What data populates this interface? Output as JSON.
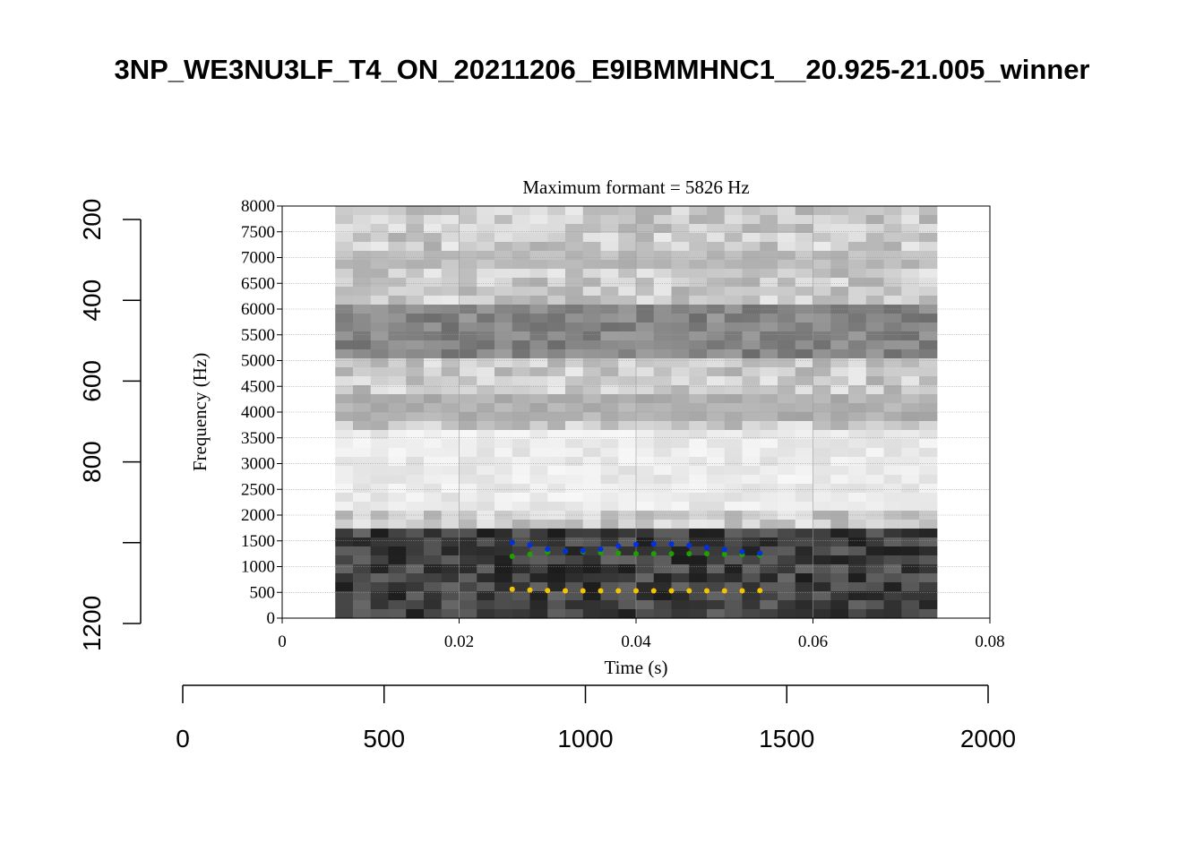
{
  "page": {
    "title": "3NP_WE3NU3LF_T4_ON_20211206_E9IBMMHNC1__20.925-21.005_winner"
  },
  "outer_axes": {
    "x_ticks": [
      "0",
      "500",
      "1000",
      "1500",
      "2000"
    ],
    "x_tick_values": [
      0,
      500,
      1000,
      1500,
      2000
    ],
    "y_ticks": [
      "200",
      "400",
      "600",
      "800",
      "",
      "1200"
    ],
    "y_tick_values": [
      200,
      400,
      600,
      800,
      1000,
      1200
    ]
  },
  "chart_data": {
    "type": "scatter",
    "title": "Maximum formant  =  5826 Hz",
    "xlabel": "Time (s)",
    "ylabel": "Frequency (Hz)",
    "xlim": [
      0,
      0.08
    ],
    "ylim": [
      0,
      8000
    ],
    "x_ticks": [
      "0",
      "0.02",
      "0.04",
      "0.06",
      "0.08"
    ],
    "x_tick_values": [
      0,
      0.02,
      0.04,
      0.06,
      0.08
    ],
    "y_ticks": [
      "0",
      "500",
      "1000",
      "1500",
      "2000",
      "2500",
      "3000",
      "3500",
      "4000",
      "4500",
      "5000",
      "5500",
      "6000",
      "6500",
      "7000",
      "7500",
      "8000"
    ],
    "y_tick_values": [
      0,
      500,
      1000,
      1500,
      2000,
      2500,
      3000,
      3500,
      4000,
      4500,
      5000,
      5500,
      6000,
      6500,
      7000,
      7500,
      8000
    ],
    "grid": true,
    "spectrogram": {
      "time_range": [
        0.006,
        0.074
      ],
      "dark_bands_hz": [
        {
          "from": 0,
          "to": 1800,
          "darkness": 0.85
        },
        {
          "from": 3800,
          "to": 4300,
          "darkness": 0.35
        },
        {
          "from": 5000,
          "to": 6000,
          "darkness": 0.55
        },
        {
          "from": 6800,
          "to": 7200,
          "darkness": 0.3
        }
      ]
    },
    "series": [
      {
        "color": "#f5c400",
        "x": [
          0.026,
          0.028,
          0.03,
          0.032,
          0.034,
          0.036,
          0.038,
          0.04,
          0.042,
          0.044,
          0.046,
          0.048,
          0.05,
          0.052,
          0.054
        ],
        "y": [
          560,
          545,
          535,
          530,
          530,
          530,
          530,
          530,
          530,
          530,
          530,
          530,
          530,
          530,
          535
        ]
      },
      {
        "color": "#1fa000",
        "x": [
          0.026,
          0.028,
          0.03,
          0.032,
          0.034,
          0.036,
          0.038,
          0.04,
          0.042,
          0.044,
          0.046,
          0.048,
          0.05,
          0.052,
          0.054
        ],
        "y": [
          1200,
          1240,
          1280,
          1300,
          1290,
          1270,
          1260,
          1250,
          1250,
          1250,
          1250,
          1250,
          1240,
          1230,
          1220
        ]
      },
      {
        "color": "#0030e0",
        "x": [
          0.026,
          0.028,
          0.03,
          0.032,
          0.034,
          0.036,
          0.038,
          0.04,
          0.042,
          0.044,
          0.046,
          0.048,
          0.05,
          0.052,
          0.054
        ],
        "y": [
          1470,
          1420,
          1340,
          1300,
          1310,
          1340,
          1400,
          1430,
          1440,
          1440,
          1410,
          1370,
          1330,
          1290,
          1260
        ]
      }
    ]
  }
}
